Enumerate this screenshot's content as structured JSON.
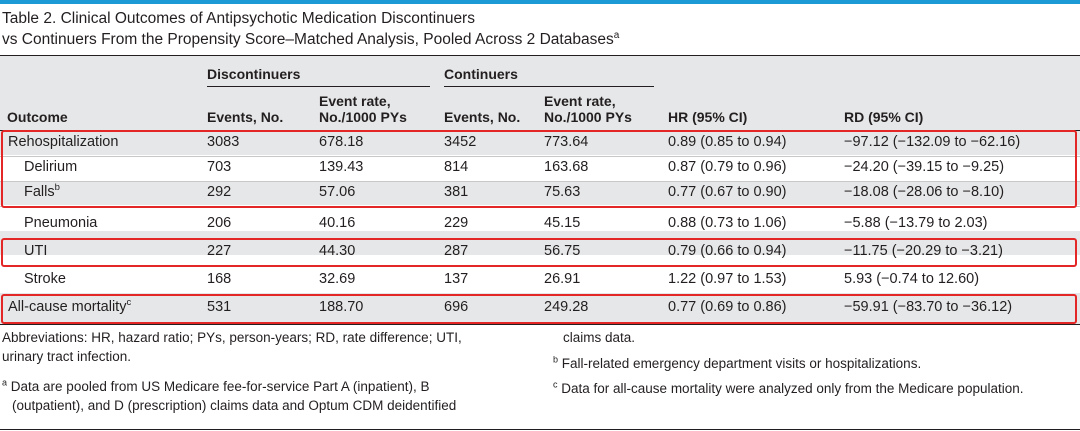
{
  "table": {
    "title_line1": "Table 2. Clinical Outcomes of Antipsychotic Medication Discontinuers",
    "title_line2": "vs Continuers From the Propensity Score–Matched Analysis, Pooled Across 2 Databases",
    "title_marker": "a",
    "groups": {
      "discontinuers": "Discontinuers",
      "continuers": "Continuers"
    },
    "headers": {
      "outcome": "Outcome",
      "disc_events": "Events, No.",
      "disc_rate_1": "Event rate,",
      "disc_rate_2": "No./1000 PYs",
      "cont_events": "Events, No.",
      "cont_rate_1": "Event rate,",
      "cont_rate_2": "No./1000 PYs",
      "hr": "HR (95% CI)",
      "rd": "RD (95% CI)"
    },
    "rows": [
      {
        "outcome": "Rehospitalization",
        "marker": "",
        "disc_events": "3083",
        "disc_rate": "678.18",
        "cont_events": "3452",
        "cont_rate": "773.64",
        "hr": "0.89 (0.85 to 0.94)",
        "rd": "−97.12 (−132.09 to −62.16)"
      },
      {
        "outcome": "Delirium",
        "marker": "",
        "disc_events": "703",
        "disc_rate": "139.43",
        "cont_events": "814",
        "cont_rate": "163.68",
        "hr": "0.87 (0.79 to 0.96)",
        "rd": "−24.20 (−39.15 to −9.25)"
      },
      {
        "outcome": "Falls",
        "marker": "b",
        "disc_events": "292",
        "disc_rate": "57.06",
        "cont_events": "381",
        "cont_rate": "75.63",
        "hr": "0.77 (0.67 to 0.90)",
        "rd": "−18.08 (−28.06 to −8.10)"
      },
      {
        "outcome": "Pneumonia",
        "marker": "",
        "disc_events": "206",
        "disc_rate": "40.16",
        "cont_events": "229",
        "cont_rate": "45.15",
        "hr": "0.88 (0.73 to 1.06)",
        "rd": "−5.88 (−13.79 to 2.03)"
      },
      {
        "outcome": "UTI",
        "marker": "",
        "disc_events": "227",
        "disc_rate": "44.30",
        "cont_events": "287",
        "cont_rate": "56.75",
        "hr": "0.79 (0.66 to 0.94)",
        "rd": "−11.75 (−20.29 to −3.21)"
      },
      {
        "outcome": "Stroke",
        "marker": "",
        "disc_events": "168",
        "disc_rate": "32.69",
        "cont_events": "137",
        "cont_rate": "26.91",
        "hr": "1.22 (0.97 to 1.53)",
        "rd": "5.93 (−0.74 to 12.60)"
      },
      {
        "outcome": "All-cause mortality",
        "marker": "c",
        "disc_events": "531",
        "disc_rate": "188.70",
        "cont_events": "696",
        "cont_rate": "249.28",
        "hr": "0.77 (0.69 to 0.86)",
        "rd": "−59.91 (−83.70 to −36.12)"
      }
    ]
  },
  "footnotes": {
    "abbrev_line1": "Abbreviations: HR, hazard ratio; PYs, person-years; RD, rate difference; UTI,",
    "abbrev_line2": "urinary tract infection.",
    "a_marker": "a",
    "a_line1": "Data are pooled from US Medicare fee-for-service Part A (inpatient), B",
    "a_line2": "(outpatient), and D (prescription) claims data and Optum CDM deidentified",
    "a_line3": "claims data.",
    "b_marker": "b",
    "b_text": "Fall-related emergency department visits or hospitalizations.",
    "c_marker": "c",
    "c_text": "Data for all-cause mortality were analyzed only from the Medicare population."
  },
  "colors": {
    "accent_bar": "#1b9ad6",
    "row_shade": "#e6e7e8",
    "highlight_box": "#e32727"
  }
}
